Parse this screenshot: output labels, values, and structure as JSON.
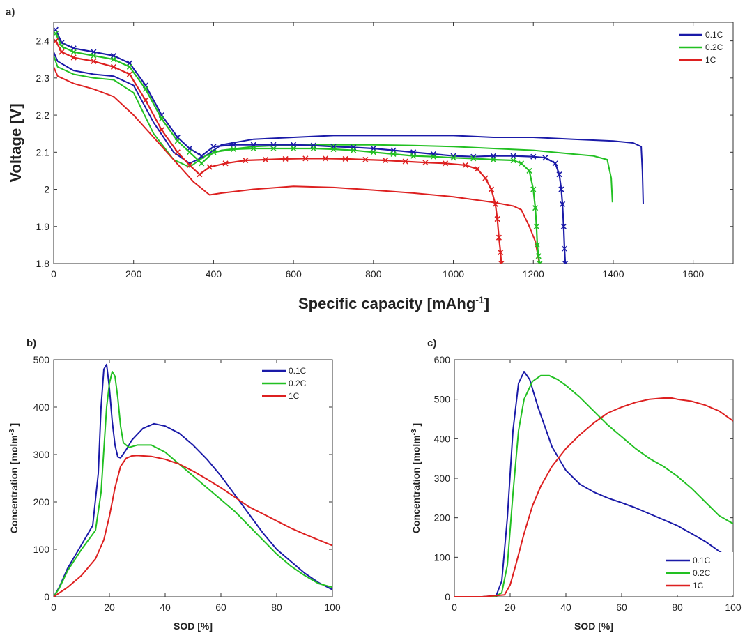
{
  "chart_data": [
    {
      "id": "a",
      "panel_label": "a)",
      "type": "line",
      "xlabel": "Specific capacity [mAhg",
      "xlabel_sup": "-1",
      "xlabel_close": "]",
      "ylabel": "Voltage [V]",
      "xlim": [
        0,
        1700
      ],
      "ylim": [
        1.8,
        2.45
      ],
      "xticks": [
        0,
        200,
        400,
        600,
        800,
        1000,
        1200,
        1400,
        1600
      ],
      "yticks": [
        1.8,
        1.9,
        2.0,
        2.1,
        2.2,
        2.3,
        2.4
      ],
      "ytick_labels": [
        "1.8",
        "1.9",
        "2",
        "2.1",
        "2.2",
        "2.3",
        "2.4"
      ],
      "legend_position": "top-right",
      "series": [
        {
          "name": "0.1C",
          "color": "#1a1aa8",
          "style": "line",
          "x": [
            0,
            10,
            50,
            100,
            150,
            200,
            250,
            300,
            340,
            380,
            420,
            500,
            600,
            700,
            800,
            900,
            1000,
            1100,
            1200,
            1300,
            1400,
            1450,
            1470,
            1473,
            1475
          ],
          "y": [
            2.37,
            2.345,
            2.32,
            2.31,
            2.305,
            2.28,
            2.18,
            2.1,
            2.07,
            2.09,
            2.12,
            2.135,
            2.14,
            2.145,
            2.145,
            2.145,
            2.145,
            2.14,
            2.14,
            2.135,
            2.13,
            2.125,
            2.115,
            2.05,
            1.96
          ]
        },
        {
          "name": "0.2C",
          "color": "#22c022",
          "style": "line",
          "x": [
            0,
            10,
            50,
            100,
            150,
            200,
            250,
            300,
            340,
            380,
            420,
            500,
            600,
            700,
            800,
            900,
            1000,
            1100,
            1200,
            1300,
            1350,
            1385,
            1395,
            1398
          ],
          "y": [
            2.36,
            2.33,
            2.31,
            2.3,
            2.295,
            2.26,
            2.15,
            2.08,
            2.06,
            2.09,
            2.105,
            2.115,
            2.12,
            2.12,
            2.12,
            2.118,
            2.115,
            2.11,
            2.105,
            2.095,
            2.09,
            2.08,
            2.03,
            1.965
          ]
        },
        {
          "name": "1C",
          "color": "#dd2020",
          "style": "line",
          "x": [
            0,
            10,
            50,
            100,
            150,
            200,
            250,
            300,
            350,
            390,
            420,
            500,
            600,
            700,
            800,
            900,
            1000,
            1100,
            1150,
            1170,
            1190,
            1205,
            1212,
            1215
          ],
          "y": [
            2.33,
            2.305,
            2.285,
            2.27,
            2.25,
            2.2,
            2.14,
            2.08,
            2.02,
            1.985,
            1.99,
            2.0,
            2.008,
            2.005,
            1.998,
            1.99,
            1.98,
            1.965,
            1.955,
            1.945,
            1.9,
            1.86,
            1.82,
            1.8
          ]
        },
        {
          "name": "0.1C",
          "color": "#1a1aa8",
          "style": "markers",
          "x": [
            5,
            20,
            50,
            100,
            150,
            190,
            230,
            270,
            310,
            340,
            370,
            400,
            450,
            500,
            550,
            600,
            650,
            700,
            750,
            800,
            850,
            900,
            950,
            1000,
            1050,
            1100,
            1150,
            1200,
            1230,
            1255,
            1265,
            1270,
            1273,
            1276,
            1278,
            1280
          ],
          "y": [
            2.43,
            2.395,
            2.38,
            2.37,
            2.36,
            2.34,
            2.28,
            2.2,
            2.14,
            2.11,
            2.09,
            2.115,
            2.12,
            2.12,
            2.12,
            2.12,
            2.118,
            2.115,
            2.113,
            2.11,
            2.105,
            2.1,
            2.095,
            2.09,
            2.088,
            2.09,
            2.09,
            2.088,
            2.085,
            2.07,
            2.04,
            2.0,
            1.96,
            1.9,
            1.84,
            1.8
          ]
        },
        {
          "name": "0.2C",
          "color": "#22c022",
          "style": "markers",
          "x": [
            5,
            20,
            50,
            100,
            150,
            190,
            230,
            270,
            310,
            340,
            370,
            400,
            450,
            500,
            550,
            600,
            650,
            700,
            750,
            800,
            850,
            900,
            950,
            1000,
            1050,
            1100,
            1150,
            1170,
            1190,
            1200,
            1205,
            1208,
            1210,
            1213,
            1216
          ],
          "y": [
            2.42,
            2.385,
            2.37,
            2.36,
            2.35,
            2.33,
            2.27,
            2.19,
            2.13,
            2.1,
            2.07,
            2.1,
            2.108,
            2.11,
            2.11,
            2.11,
            2.11,
            2.108,
            2.105,
            2.1,
            2.095,
            2.09,
            2.088,
            2.085,
            2.083,
            2.08,
            2.078,
            2.07,
            2.05,
            2.0,
            1.95,
            1.9,
            1.85,
            1.82,
            1.8
          ]
        },
        {
          "name": "1C",
          "color": "#dd2020",
          "style": "markers",
          "x": [
            5,
            20,
            50,
            100,
            150,
            190,
            230,
            270,
            310,
            340,
            365,
            390,
            430,
            480,
            530,
            580,
            630,
            680,
            730,
            780,
            830,
            880,
            930,
            980,
            1030,
            1060,
            1080,
            1095,
            1105,
            1110,
            1114,
            1118,
            1120
          ],
          "y": [
            2.4,
            2.37,
            2.355,
            2.345,
            2.33,
            2.31,
            2.24,
            2.16,
            2.1,
            2.065,
            2.04,
            2.06,
            2.07,
            2.078,
            2.08,
            2.082,
            2.083,
            2.083,
            2.082,
            2.08,
            2.078,
            2.075,
            2.072,
            2.07,
            2.065,
            2.055,
            2.03,
            2.0,
            1.96,
            1.92,
            1.87,
            1.83,
            1.8
          ]
        }
      ],
      "legend": [
        {
          "name": "0.1C",
          "color": "#1a1aa8"
        },
        {
          "name": "0.2C",
          "color": "#22c022"
        },
        {
          "name": "1C",
          "color": "#dd2020"
        }
      ]
    },
    {
      "id": "b",
      "panel_label": "b)",
      "type": "line",
      "xlabel": "SOD [%]",
      "ylabel": "Concentration [molm",
      "ylabel_sup": "-3",
      "ylabel_close": " ]",
      "xlim": [
        0,
        100
      ],
      "ylim": [
        0,
        500
      ],
      "xticks": [
        0,
        20,
        40,
        60,
        80,
        100
      ],
      "yticks": [
        0,
        100,
        200,
        300,
        400,
        500
      ],
      "legend_position": "top-right",
      "series": [
        {
          "name": "0.1C",
          "color": "#1a1aa8",
          "x": [
            0,
            2,
            5,
            10,
            14,
            16,
            17,
            18,
            19,
            20,
            21,
            22,
            23,
            24,
            26,
            28,
            32,
            36,
            40,
            45,
            50,
            55,
            60,
            65,
            70,
            75,
            80,
            85,
            90,
            95,
            100
          ],
          "y": [
            0,
            20,
            60,
            110,
            150,
            260,
            400,
            480,
            490,
            440,
            370,
            320,
            295,
            293,
            310,
            330,
            355,
            365,
            360,
            345,
            320,
            290,
            255,
            215,
            175,
            135,
            100,
            75,
            50,
            30,
            15
          ]
        },
        {
          "name": "0.2C",
          "color": "#22c022",
          "x": [
            0,
            2,
            5,
            10,
            15,
            17,
            18,
            19,
            20,
            21,
            22,
            23,
            24,
            25,
            27,
            30,
            35,
            40,
            45,
            50,
            55,
            60,
            65,
            70,
            75,
            80,
            85,
            90,
            95,
            100
          ],
          "y": [
            0,
            18,
            55,
            100,
            140,
            220,
            310,
            400,
            450,
            475,
            465,
            420,
            360,
            325,
            315,
            320,
            320,
            305,
            280,
            255,
            230,
            205,
            180,
            150,
            120,
            90,
            65,
            45,
            28,
            20
          ]
        },
        {
          "name": "1C",
          "color": "#dd2020",
          "x": [
            0,
            5,
            10,
            15,
            18,
            20,
            22,
            24,
            26,
            28,
            30,
            35,
            40,
            45,
            50,
            55,
            60,
            65,
            70,
            75,
            80,
            85,
            90,
            95,
            100
          ],
          "y": [
            0,
            20,
            45,
            80,
            120,
            170,
            230,
            275,
            292,
            297,
            298,
            296,
            290,
            280,
            265,
            248,
            230,
            210,
            190,
            175,
            160,
            145,
            132,
            120,
            108
          ]
        }
      ],
      "legend": [
        {
          "name": "0.1C",
          "color": "#1a1aa8"
        },
        {
          "name": "0.2C",
          "color": "#22c022"
        },
        {
          "name": "1C",
          "color": "#dd2020"
        }
      ]
    },
    {
      "id": "c",
      "panel_label": "c)",
      "type": "line",
      "xlabel": "SOD [%]",
      "ylabel": "Concentration [molm",
      "ylabel_sup": "-3",
      "ylabel_close": " ]",
      "xlim": [
        0,
        100
      ],
      "ylim": [
        0,
        600
      ],
      "xticks": [
        0,
        20,
        40,
        60,
        80,
        100
      ],
      "yticks": [
        0,
        100,
        200,
        300,
        400,
        500,
        600
      ],
      "legend_position": "bottom-right",
      "series": [
        {
          "name": "0.1C",
          "color": "#1a1aa8",
          "x": [
            0,
            10,
            15,
            17,
            19,
            21,
            23,
            25,
            27,
            30,
            35,
            40,
            45,
            50,
            55,
            60,
            65,
            70,
            75,
            80,
            85,
            90,
            95,
            98,
            100
          ],
          "y": [
            0,
            0,
            3,
            40,
            200,
            420,
            540,
            570,
            550,
            480,
            380,
            320,
            285,
            265,
            250,
            238,
            225,
            210,
            195,
            180,
            160,
            140,
            115,
            102,
            95
          ]
        },
        {
          "name": "0.2C",
          "color": "#22c022",
          "x": [
            0,
            10,
            15,
            17,
            19,
            21,
            23,
            25,
            28,
            31,
            34,
            37,
            40,
            45,
            50,
            55,
            60,
            65,
            70,
            75,
            80,
            85,
            90,
            95,
            100
          ],
          "y": [
            0,
            0,
            2,
            10,
            80,
            260,
            420,
            500,
            545,
            560,
            560,
            550,
            535,
            505,
            470,
            435,
            405,
            375,
            350,
            330,
            305,
            275,
            240,
            205,
            185
          ]
        },
        {
          "name": "1C",
          "color": "#dd2020",
          "x": [
            0,
            10,
            18,
            20,
            22,
            25,
            28,
            31,
            35,
            40,
            45,
            50,
            55,
            60,
            65,
            70,
            75,
            78,
            80,
            85,
            90,
            95,
            100
          ],
          "y": [
            0,
            0,
            5,
            30,
            80,
            160,
            230,
            280,
            330,
            375,
            410,
            440,
            465,
            480,
            492,
            500,
            503,
            503,
            500,
            495,
            485,
            470,
            445
          ]
        }
      ],
      "legend": [
        {
          "name": "0.1C",
          "color": "#1a1aa8"
        },
        {
          "name": "0.2C",
          "color": "#22c022"
        },
        {
          "name": "1C",
          "color": "#dd2020"
        }
      ]
    }
  ]
}
